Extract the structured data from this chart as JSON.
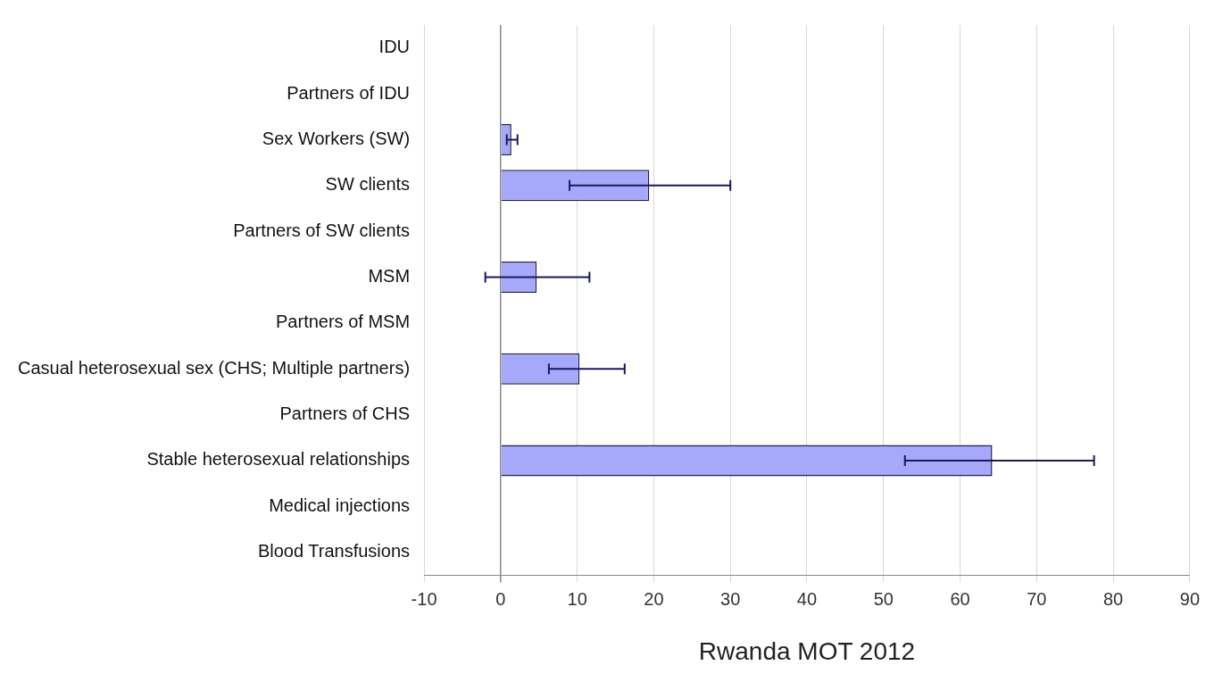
{
  "chart_data": {
    "type": "bar",
    "orientation": "horizontal",
    "xlabel": "Rwanda MOT 2012",
    "categories": [
      "IDU",
      "Partners of IDU",
      "Sex Workers (SW)",
      "SW clients",
      "Partners of SW clients",
      "MSM",
      "Partners of MSM",
      "Casual heterosexual sex (CHS; Multiple partners)",
      "Partners of CHS",
      "Stable heterosexual relationships",
      "Medical injections",
      "Blood Transfusions"
    ],
    "values": [
      null,
      null,
      1.4,
      19.4,
      null,
      4.7,
      null,
      10.3,
      null,
      64.2,
      null,
      null
    ],
    "errors": [
      null,
      null,
      [
        0.8,
        2.2
      ],
      [
        9,
        30
      ],
      null,
      [
        -2,
        11.6
      ],
      null,
      [
        6.3,
        16.2
      ],
      null,
      [
        52.8,
        77.5
      ],
      null,
      null
    ],
    "color": "#a6a8fa",
    "xlim": [
      -10,
      90
    ],
    "xticks": [
      -10,
      0,
      10,
      20,
      30,
      40,
      50,
      60,
      70,
      80,
      90
    ],
    "grid": "x",
    "legend": false
  }
}
